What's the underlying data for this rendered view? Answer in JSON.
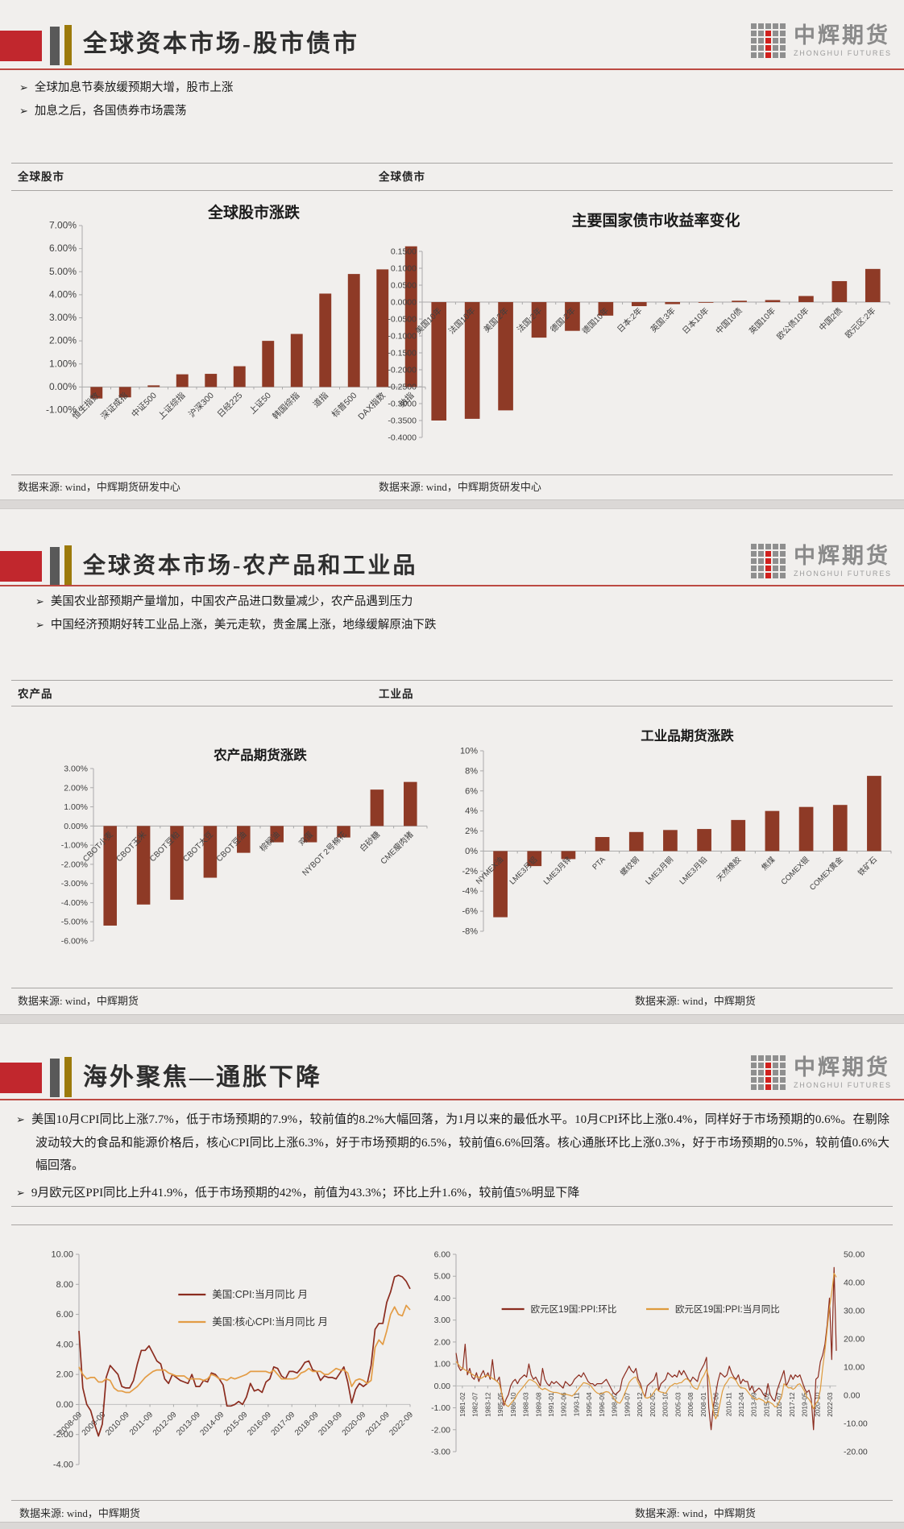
{
  "brand": {
    "logo_text": "中辉期货",
    "logo_subtext": "ZHONGHUI FUTURES"
  },
  "sections": [
    {
      "title": "全球资本市场-股市债市",
      "bullets": [
        "全球加息节奏放缓预期大增，股市上涨",
        "加息之后，各国债券市场震荡"
      ],
      "panel_left": "全球股市",
      "panel_right": "全球债市",
      "source_left": "数据来源: wind，中辉期货研发中心",
      "source_right": "数据来源: wind，中辉期货研发中心"
    },
    {
      "title": "全球资本市场-农产品和工业品",
      "bullets": [
        "美国农业部预期产量增加，中国农产品进口数量减少，农产品遇到压力",
        "中国经济预期好转工业品上涨，美元走软，贵金属上涨，地缘缓解原油下跌"
      ],
      "panel_left": "农产品",
      "panel_right": "工业品",
      "source_left": "数据来源: wind，中辉期货",
      "source_right": "数据来源: wind，中辉期货"
    },
    {
      "title": "海外聚焦—通胀下降",
      "bullets": [
        "美国10月CPI同比上涨7.7%，低于市场预期的7.9%，较前值的8.2%大幅回落，为1月以来的最低水平。10月CPI环比上涨0.4%，同样好于市场预期的0.6%。在剔除波动较大的食品和能源价格后，核心CPI同比上涨6.3%，好于市场预期的6.5%，较前值6.6%回落。核心通胀环比上涨0.3%，好于市场预期的0.5%，较前值0.6%大幅回落。",
        "9月欧元区PPI同比上升41.9%，低于市场预期的42%，前值为43.3%；环比上升1.6%，较前值5%明显下降"
      ],
      "source_left": "数据来源: wind，中辉期货",
      "source_right": "数据来源: wind，中辉期货"
    }
  ],
  "chart_data": [
    {
      "id": "global-stocks",
      "type": "bar",
      "title": "全球股市涨跌",
      "categories": [
        "恒生指数",
        "深证成指",
        "中证500",
        "上证综指",
        "沪深300",
        "日经225",
        "上证50",
        "韩国综指",
        "道指",
        "标普500",
        "DAX指数",
        "纳指"
      ],
      "values": [
        -0.5,
        -0.45,
        0.07,
        0.55,
        0.57,
        0.9,
        2.0,
        2.3,
        4.05,
        4.9,
        5.1,
        6.1
      ],
      "axis": {
        "min": -1,
        "max": 7,
        "step": 1,
        "format": "p2"
      },
      "bar_color": "#8e3a26"
    },
    {
      "id": "bond-yields",
      "type": "bar",
      "title": "主要国家债市收益率变化",
      "categories": [
        "美国10年",
        "法国10年",
        "美国:2年",
        "法国:2年",
        "德国:2年",
        "德国10年",
        "日本:2年",
        "英国:3年",
        "日本10年",
        "中国10债",
        "英国10年",
        "欧公债10年",
        "中国2债",
        "欧元区:2年"
      ],
      "values": [
        -0.35,
        -0.345,
        -0.32,
        -0.105,
        -0.085,
        -0.04,
        -0.012,
        -0.006,
        -0.002,
        0.004,
        0.006,
        0.018,
        0.062,
        0.098
      ],
      "axis": {
        "min": -0.4,
        "max": 0.15,
        "step": 0.05,
        "format": "d4"
      },
      "bar_color": "#8e3a26"
    },
    {
      "id": "agri-futures",
      "type": "bar",
      "title": "农产品期货涨跌",
      "categories": [
        "CBOT小麦",
        "CBOT玉米",
        "CBOT豆粕",
        "CBOT大豆",
        "CBOT豆油",
        "棕榈油",
        "鸡蛋",
        "NYBOT 2号棉花",
        "白砂糖",
        "CME瘦肉猪"
      ],
      "values": [
        -5.2,
        -4.1,
        -3.85,
        -2.7,
        -1.4,
        -0.85,
        -0.85,
        -0.6,
        1.9,
        2.3
      ],
      "axis": {
        "min": -6,
        "max": 3,
        "step": 1,
        "format": "p2"
      },
      "bar_color": "#8e3a26"
    },
    {
      "id": "industrial-futures",
      "type": "bar",
      "title": "工业品期货涨跌",
      "categories": [
        "NYMEX油",
        "LME3月铝",
        "LME3月锌",
        "PTA",
        "螺纹钢",
        "LME3月铜",
        "LME3月铅",
        "天然橡胶",
        "焦煤",
        "COMEX银",
        "COMEX黄金",
        "铁矿石"
      ],
      "values": [
        -6.6,
        -1.5,
        -0.8,
        1.4,
        1.9,
        2.1,
        2.2,
        3.1,
        4.0,
        4.4,
        4.6,
        7.5
      ],
      "axis": {
        "min": -8,
        "max": 10,
        "step": 2,
        "format": "p0"
      },
      "bar_color": "#8e3a26"
    },
    {
      "id": "us-cpi",
      "type": "line",
      "x_labels": [
        "2008-09",
        "2009-09",
        "2010-09",
        "2011-09",
        "2012-09",
        "2013-09",
        "2014-09",
        "2015-09",
        "2016-09",
        "2017-09",
        "2018-09",
        "2019-09",
        "2020-09",
        "2021-09",
        "2022-09"
      ],
      "left_axis": {
        "min": -4,
        "max": 10,
        "step": 2,
        "format": "d2"
      },
      "series": [
        {
          "name": "美国:CPI:当月同比 月",
          "axis": "left",
          "color": "#8b2c1f",
          "values": [
            4.9,
            1.1,
            0.0,
            -0.4,
            -1.3,
            -2.1,
            -1.3,
            1.8,
            2.6,
            2.3,
            2.0,
            1.2,
            1.1,
            1.1,
            1.6,
            2.7,
            3.6,
            3.6,
            3.9,
            3.4,
            2.9,
            2.7,
            1.7,
            1.4,
            2.0,
            1.8,
            1.6,
            1.5,
            1.4,
            2.0,
            1.2,
            1.2,
            1.6,
            1.5,
            2.1,
            2.0,
            1.7,
            1.3,
            -0.1,
            -0.1,
            0.0,
            0.2,
            0.0,
            0.5,
            1.4,
            0.9,
            1.0,
            0.8,
            1.5,
            1.7,
            2.5,
            2.4,
            1.9,
            1.7,
            2.2,
            2.2,
            2.1,
            2.4,
            2.8,
            2.9,
            2.3,
            2.2,
            1.6,
            1.9,
            1.8,
            1.8,
            1.7,
            2.1,
            2.5,
            1.5,
            0.1,
            1.0,
            1.4,
            1.2,
            1.4,
            2.6,
            5.0,
            5.4,
            5.4,
            6.8,
            7.5,
            8.5,
            8.6,
            8.5,
            8.2,
            7.7
          ]
        },
        {
          "name": "美国:核心CPI:当月同比 月",
          "axis": "left",
          "color": "#e39c45",
          "values": [
            2.5,
            2.0,
            1.7,
            1.8,
            1.8,
            1.5,
            1.5,
            1.7,
            1.6,
            1.1,
            0.9,
            0.9,
            0.8,
            0.8,
            1.0,
            1.2,
            1.5,
            1.8,
            2.0,
            2.2,
            2.3,
            2.3,
            2.3,
            2.1,
            2.0,
            1.9,
            1.9,
            1.9,
            1.7,
            1.7,
            1.7,
            1.7,
            1.6,
            1.7,
            2.0,
            1.9,
            1.7,
            1.7,
            1.6,
            1.8,
            1.7,
            1.8,
            1.9,
            2.0,
            2.2,
            2.2,
            2.2,
            2.2,
            2.2,
            2.1,
            2.3,
            2.0,
            1.7,
            1.7,
            1.7,
            1.7,
            1.8,
            2.1,
            2.2,
            2.4,
            2.2,
            2.2,
            2.2,
            2.0,
            2.0,
            2.2,
            2.4,
            2.3,
            2.3,
            2.1,
            1.2,
            1.6,
            1.7,
            1.6,
            1.4,
            1.6,
            3.8,
            4.3,
            4.0,
            4.9,
            6.0,
            6.5,
            6.0,
            5.9,
            6.6,
            6.3
          ]
        }
      ]
    },
    {
      "id": "eu-ppi",
      "type": "line",
      "x_labels": [
        "1981-02",
        "1982-07",
        "1983-12",
        "1985-05",
        "1986-10",
        "1988-03",
        "1989-08",
        "1991-01",
        "1992-06",
        "1993-11",
        "1995-04",
        "1996-09",
        "1998-02",
        "1999-07",
        "2000-12",
        "2002-05",
        "2003-10",
        "2005-03",
        "2006-08",
        "2008-01",
        "2009-06",
        "2010-11",
        "2012-04",
        "2013-09",
        "2015-02",
        "2016-07",
        "2017-12",
        "2019-05",
        "2020-10",
        "2022-03"
      ],
      "left_axis": {
        "min": -3,
        "max": 6,
        "step": 1,
        "format": "d2"
      },
      "right_axis": {
        "min": -20,
        "max": 50,
        "step": 10,
        "format": "d2"
      },
      "series": [
        {
          "name": "欧元区19国:PPI:环比",
          "axis": "left",
          "color": "#8b2c1f",
          "values": [
            1.5,
            0.9,
            0.7,
            0.8,
            1.9,
            0.5,
            0.8,
            0.4,
            0.3,
            0.6,
            0.2,
            0.5,
            0.7,
            0.4,
            0.6,
            0.3,
            1.2,
            0.3,
            0.2,
            0.4,
            -0.3,
            -0.9,
            -0.6,
            -0.4,
            0.0,
            0.2,
            0.3,
            0.1,
            0.3,
            0.4,
            0.5,
            0.4,
            1.0,
            0.5,
            0.3,
            0.4,
            0.2,
            0.0,
            0.8,
            0.3,
            0.1,
            0.0,
            0.2,
            0.1,
            0.2,
            0.1,
            0.0,
            -0.1,
            0.2,
            0.1,
            0.0,
            0.1,
            0.3,
            0.4,
            0.5,
            0.4,
            0.6,
            0.4,
            0.2,
            0.1,
            0.1,
            0.0,
            0.1,
            0.1,
            0.1,
            0.2,
            0.3,
            0.1,
            -0.1,
            -0.3,
            -0.4,
            -0.3,
            -0.2,
            0.3,
            0.5,
            0.7,
            0.9,
            0.7,
            0.6,
            0.8,
            0.3,
            0.1,
            -0.3,
            -0.5,
            0.0,
            0.1,
            0.2,
            0.3,
            0.6,
            -0.2,
            0.1,
            0.2,
            0.3,
            0.6,
            0.5,
            0.4,
            0.5,
            0.4,
            0.7,
            0.5,
            0.7,
            0.5,
            0.3,
            0.2,
            0.4,
            0.3,
            0.2,
            0.6,
            0.8,
            1.0,
            1.3,
            -1.0,
            -2.0,
            -0.9,
            -0.4,
            0.2,
            0.6,
            0.5,
            0.4,
            0.5,
            0.9,
            0.6,
            0.4,
            0.3,
            0.5,
            0.1,
            0.3,
            0.2,
            0.2,
            -0.2,
            0.0,
            -0.3,
            -0.2,
            -0.1,
            -0.2,
            -0.4,
            -0.5,
            0.1,
            -0.4,
            -0.6,
            -0.7,
            -0.2,
            0.1,
            0.4,
            0.7,
            0.0,
            0.2,
            0.5,
            0.3,
            0.5,
            0.4,
            0.5,
            0.2,
            -0.1,
            -0.3,
            -0.2,
            -0.6,
            -2.0,
            0.3,
            0.4,
            1.1,
            1.4,
            1.9,
            2.8,
            4.0,
            1.2,
            5.4,
            1.6
          ]
        },
        {
          "name": "欧元区19国:PPI:当月同比",
          "axis": "right",
          "color": "#de9b3d",
          "values": [
            12,
            11,
            10,
            9.5,
            9,
            8.5,
            8,
            7.5,
            7,
            6.5,
            6.5,
            6,
            6.5,
            7,
            7,
            6.5,
            6,
            5.5,
            5,
            4,
            1,
            -2,
            -3.5,
            -4,
            -3,
            -2,
            -1,
            0.5,
            1.5,
            2.5,
            3.5,
            4.5,
            5.5,
            5.5,
            5,
            4.5,
            3.5,
            2.5,
            2,
            2.5,
            2,
            1.5,
            1.2,
            1,
            1,
            0.8,
            0.5,
            0.3,
            0.5,
            0.2,
            0,
            -0.3,
            0.5,
            1.5,
            2.5,
            3.5,
            4.5,
            4.3,
            4,
            3.5,
            2.5,
            1.5,
            0.8,
            0.5,
            0.6,
            1,
            1.3,
            1.1,
            0.3,
            -0.8,
            -1.8,
            -2.6,
            -2.8,
            -1.5,
            0.5,
            2.5,
            4.5,
            5.5,
            6.2,
            6.5,
            4.5,
            3,
            1.2,
            -0.8,
            -1,
            -0.7,
            0.1,
            1.2,
            2.4,
            1.5,
            1.1,
            1,
            0.6,
            2,
            3.1,
            3.6,
            4.2,
            4,
            4.4,
            4.5,
            5.3,
            5.9,
            5.5,
            4.4,
            3,
            2.4,
            2.1,
            4.1,
            5.9,
            7.3,
            9.2,
            6.3,
            0.5,
            -5.5,
            -8.4,
            -6.6,
            -2.5,
            1.5,
            3.6,
            4.7,
            6.1,
            6.4,
            5.9,
            5.2,
            3.6,
            2.6,
            2.6,
            2.4,
            1.4,
            0.3,
            -0.6,
            -1.1,
            -1.6,
            -1.1,
            -1.5,
            -1.9,
            -2.8,
            -2.1,
            -2.6,
            -3.1,
            -4.1,
            -3.9,
            -2.1,
            -0.4,
            4.1,
            3.4,
            2.6,
            2.7,
            2.1,
            2.7,
            3.8,
            4.1,
            2.9,
            1.5,
            -0.6,
            -1.4,
            -2.8,
            -4.8,
            -2.9,
            -1.8,
            2,
            9.5,
            16,
            23.5,
            31,
            36.5,
            43.3,
            41.9
          ]
        }
      ]
    }
  ]
}
